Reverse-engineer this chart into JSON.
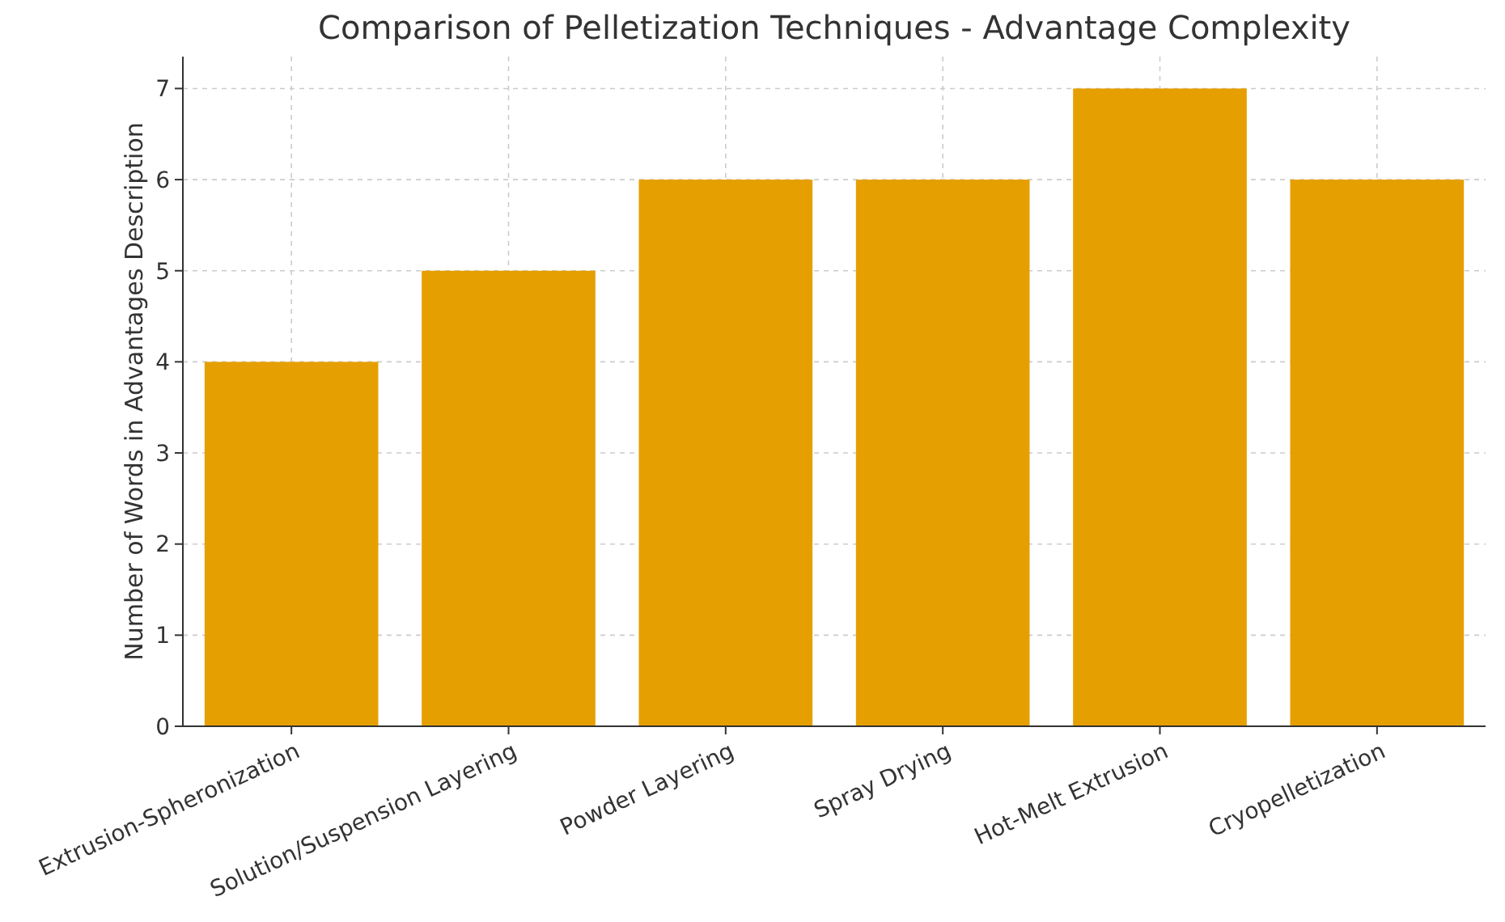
{
  "chart_data": {
    "type": "bar",
    "title": "Comparison of Pelletization Techniques - Advantage Complexity",
    "ylabel": "Number of Words in Advantages Description",
    "categories": [
      "Extrusion-Spheronization",
      "Solution/Suspension Layering",
      "Powder Layering",
      "Spray Drying",
      "Hot-Melt Extrusion",
      "Cryopelletization"
    ],
    "values": [
      4,
      5,
      6,
      6,
      7,
      6
    ],
    "color": "#e69f00",
    "ylim": [
      0,
      7.35
    ],
    "yticks": [
      0,
      1,
      2,
      3,
      4,
      5,
      6,
      7
    ],
    "grid": true
  }
}
